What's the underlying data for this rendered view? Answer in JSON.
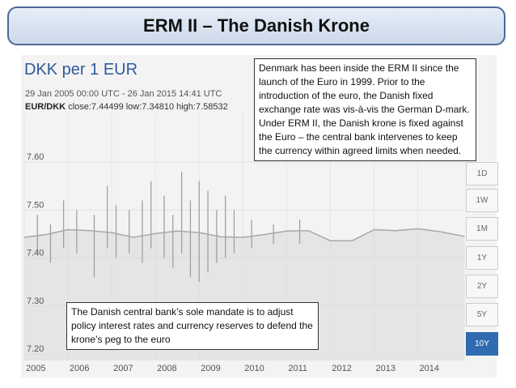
{
  "slide_title": "ERM II – The Danish Krone",
  "chart_data": {
    "type": "line",
    "title": "DKK per 1 EUR",
    "subtitle": "29 Jan 2005 00:00 UTC - 26 Jan 2015 14:41 UTC",
    "pair": "EUR/DKK",
    "stats": {
      "close": "7.44499",
      "low": "7.34810",
      "high": "7.58532"
    },
    "stats_text": "close:7.44499 low:7.34810 high:7.58532",
    "ylim": [
      7.18,
      7.63
    ],
    "y_ticks": [
      "7.60",
      "7.50",
      "7.40",
      "7.30",
      "7.20"
    ],
    "x_ticks": [
      "2005",
      "2006",
      "2007",
      "2008",
      "2009",
      "2010",
      "2011",
      "2012",
      "2013",
      "2014"
    ],
    "xlim": [
      2005.0,
      2015.1
    ],
    "x": [
      2005.0,
      2005.5,
      2006.0,
      2006.5,
      2007.0,
      2007.5,
      2008.0,
      2008.5,
      2009.0,
      2009.5,
      2010.0,
      2010.5,
      2011.0,
      2011.5,
      2012.0,
      2012.5,
      2013.0,
      2013.5,
      2014.0,
      2014.5,
      2015.07
    ],
    "values": [
      7.443,
      7.449,
      7.459,
      7.457,
      7.453,
      7.443,
      7.451,
      7.456,
      7.453,
      7.444,
      7.443,
      7.449,
      7.456,
      7.457,
      7.436,
      7.436,
      7.459,
      7.457,
      7.461,
      7.455,
      7.445
    ],
    "spikes": [
      {
        "x": 2005.3,
        "high": 7.49,
        "low": 7.41
      },
      {
        "x": 2005.6,
        "high": 7.47,
        "low": 7.39
      },
      {
        "x": 2005.9,
        "high": 7.52,
        "low": 7.42
      },
      {
        "x": 2006.2,
        "high": 7.5,
        "low": 7.41
      },
      {
        "x": 2006.6,
        "high": 7.49,
        "low": 7.36
      },
      {
        "x": 2006.9,
        "high": 7.55,
        "low": 7.42
      },
      {
        "x": 2007.1,
        "high": 7.51,
        "low": 7.4
      },
      {
        "x": 2007.4,
        "high": 7.5,
        "low": 7.41
      },
      {
        "x": 2007.7,
        "high": 7.52,
        "low": 7.39
      },
      {
        "x": 2007.9,
        "high": 7.56,
        "low": 7.42
      },
      {
        "x": 2008.2,
        "high": 7.53,
        "low": 7.4
      },
      {
        "x": 2008.4,
        "high": 7.49,
        "low": 7.38
      },
      {
        "x": 2008.6,
        "high": 7.58,
        "low": 7.41
      },
      {
        "x": 2008.8,
        "high": 7.52,
        "low": 7.36
      },
      {
        "x": 2009.0,
        "high": 7.56,
        "low": 7.35
      },
      {
        "x": 2009.2,
        "high": 7.54,
        "low": 7.37
      },
      {
        "x": 2009.4,
        "high": 7.5,
        "low": 7.39
      },
      {
        "x": 2009.6,
        "high": 7.53,
        "low": 7.4
      },
      {
        "x": 2009.8,
        "high": 7.5,
        "low": 7.41
      },
      {
        "x": 2010.2,
        "high": 7.48,
        "low": 7.42
      },
      {
        "x": 2010.7,
        "high": 7.47,
        "low": 7.43
      },
      {
        "x": 2011.3,
        "high": 7.48,
        "low": 7.43
      }
    ]
  },
  "note_top": "Denmark has been inside the ERM II since the launch of the Euro in 1999. Prior to the introduction of the euro, the Danish fixed exchange rate was vis-à-vis the German D-mark. Under ERM II, the Danish krone is fixed against the Euro – the central bank intervenes to keep the currency within agreed limits when needed.",
  "note_bottom": "The Danish central bank’s sole mandate is to adjust policy interest rates and currency reserves to defend the krone’s peg to the euro",
  "range_buttons": [
    "1D",
    "1W",
    "1M",
    "1Y",
    "2Y",
    "5Y",
    "10Y"
  ],
  "active_range": "10Y",
  "colors": {
    "line": "#a8a8a8",
    "fill": "#d9d9d9",
    "title_border": "#4a6a9a",
    "accent": "#2f6bb0"
  }
}
